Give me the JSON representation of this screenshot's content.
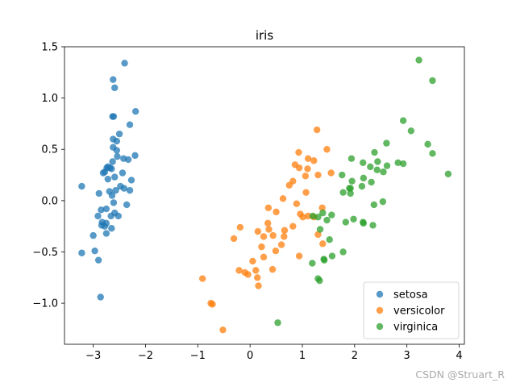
{
  "chart_data": {
    "type": "scatter",
    "title": "iris",
    "xlabel": "",
    "ylabel": "",
    "xlim": [
      -3.55,
      4.1
    ],
    "ylim": [
      -1.4,
      1.5
    ],
    "x_ticks": [
      -3,
      -2,
      -1,
      0,
      1,
      2,
      3,
      4
    ],
    "x_tick_labels": [
      "−3",
      "−2",
      "−1",
      "0",
      "1",
      "2",
      "3",
      "4"
    ],
    "y_ticks": [
      -1.0,
      -0.5,
      0.0,
      0.5,
      1.0,
      1.5
    ],
    "y_tick_labels": [
      "−1.0",
      "−0.5",
      "0.0",
      "0.5",
      "1.0",
      "1.5"
    ],
    "grid": false,
    "legend": "lower-right",
    "series": [
      {
        "name": "setosa",
        "color": "#1f77b4",
        "points": [
          [
            -2.4,
            1.34
          ],
          [
            -2.62,
            1.18
          ],
          [
            -2.59,
            1.1
          ],
          [
            -2.61,
            0.82
          ],
          [
            -2.63,
            0.82
          ],
          [
            -2.19,
            0.87
          ],
          [
            -2.3,
            0.74
          ],
          [
            -2.5,
            0.65
          ],
          [
            -2.62,
            0.6
          ],
          [
            -2.55,
            0.58
          ],
          [
            -2.62,
            0.52
          ],
          [
            -2.55,
            0.49
          ],
          [
            -2.2,
            0.44
          ],
          [
            -2.54,
            0.43
          ],
          [
            -2.42,
            0.41
          ],
          [
            -2.33,
            0.4
          ],
          [
            -2.63,
            0.38
          ],
          [
            -2.72,
            0.33
          ],
          [
            -2.74,
            0.32
          ],
          [
            -2.68,
            0.32
          ],
          [
            -2.65,
            0.31
          ],
          [
            -2.78,
            0.28
          ],
          [
            -2.81,
            0.27
          ],
          [
            -2.44,
            0.27
          ],
          [
            -2.27,
            0.2
          ],
          [
            -2.59,
            0.23
          ],
          [
            -2.72,
            0.21
          ],
          [
            -3.22,
            0.14
          ],
          [
            -2.48,
            0.14
          ],
          [
            -2.41,
            0.12
          ],
          [
            -2.57,
            0.1
          ],
          [
            -2.3,
            0.1
          ],
          [
            -2.69,
            0.09
          ],
          [
            -2.89,
            0.07
          ],
          [
            -2.64,
            0.05
          ],
          [
            -2.36,
            -0.04
          ],
          [
            -2.61,
            -0.02
          ],
          [
            -2.75,
            -0.08
          ],
          [
            -2.85,
            -0.09
          ],
          [
            -2.59,
            -0.12
          ],
          [
            -2.66,
            -0.15
          ],
          [
            -2.52,
            -0.15
          ],
          [
            -2.91,
            -0.15
          ],
          [
            -2.83,
            -0.21
          ],
          [
            -2.75,
            -0.22
          ],
          [
            -2.84,
            -0.24
          ],
          [
            -2.65,
            -0.27
          ],
          [
            -2.78,
            -0.25
          ],
          [
            -2.75,
            -0.32
          ],
          [
            -3.0,
            -0.34
          ],
          [
            -2.97,
            -0.49
          ],
          [
            -3.22,
            -0.51
          ],
          [
            -2.9,
            -0.58
          ],
          [
            -2.86,
            -0.94
          ]
        ]
      },
      {
        "name": "versicolor",
        "color": "#ff7f0e",
        "points": [
          [
            1.28,
            0.69
          ],
          [
            1.47,
            0.5
          ],
          [
            0.93,
            0.47
          ],
          [
            1.11,
            0.41
          ],
          [
            1.22,
            0.39
          ],
          [
            0.94,
            0.32
          ],
          [
            0.86,
            0.35
          ],
          [
            1.1,
            0.31
          ],
          [
            1.55,
            0.27
          ],
          [
            1.06,
            0.24
          ],
          [
            1.3,
            0.25
          ],
          [
            0.82,
            0.19
          ],
          [
            0.75,
            0.15
          ],
          [
            0.63,
            0.02
          ],
          [
            1.07,
            0.08
          ],
          [
            0.89,
            -0.03
          ],
          [
            0.35,
            -0.07
          ],
          [
            1.38,
            -0.07
          ],
          [
            0.96,
            -0.13
          ],
          [
            0.5,
            -0.11
          ],
          [
            1.11,
            -0.15
          ],
          [
            1.01,
            -0.16
          ],
          [
            1.22,
            -0.16
          ],
          [
            0.34,
            -0.22
          ],
          [
            0.82,
            -0.25
          ],
          [
            -0.19,
            -0.26
          ],
          [
            0.36,
            -0.28
          ],
          [
            0.15,
            -0.3
          ],
          [
            0.66,
            -0.29
          ],
          [
            0.26,
            -0.35
          ],
          [
            0.44,
            -0.34
          ],
          [
            0.65,
            -0.35
          ],
          [
            -0.31,
            -0.37
          ],
          [
            1.3,
            -0.33
          ],
          [
            1.39,
            -0.42
          ],
          [
            0.6,
            -0.43
          ],
          [
            0.22,
            -0.45
          ],
          [
            0.49,
            -0.49
          ],
          [
            0.26,
            -0.55
          ],
          [
            0.94,
            -0.54
          ],
          [
            0.05,
            -0.59
          ],
          [
            0.43,
            -0.67
          ],
          [
            -0.21,
            -0.68
          ],
          [
            0.11,
            -0.68
          ],
          [
            -0.1,
            -0.7
          ],
          [
            -0.04,
            -0.72
          ],
          [
            0.14,
            -0.75
          ],
          [
            -0.91,
            -0.76
          ],
          [
            0.16,
            -0.83
          ],
          [
            -0.75,
            -1.0
          ],
          [
            -0.72,
            -1.01
          ],
          [
            -0.52,
            -1.26
          ]
        ]
      },
      {
        "name": "virginica",
        "color": "#2ca02c",
        "points": [
          [
            3.23,
            1.37
          ],
          [
            3.49,
            1.17
          ],
          [
            2.93,
            0.78
          ],
          [
            3.08,
            0.68
          ],
          [
            2.61,
            0.56
          ],
          [
            3.4,
            0.55
          ],
          [
            2.38,
            0.47
          ],
          [
            3.49,
            0.46
          ],
          [
            1.94,
            0.41
          ],
          [
            2.16,
            0.37
          ],
          [
            2.44,
            0.38
          ],
          [
            2.3,
            0.33
          ],
          [
            2.62,
            0.34
          ],
          [
            2.83,
            0.37
          ],
          [
            2.43,
            0.3
          ],
          [
            2.93,
            0.36
          ],
          [
            1.76,
            0.25
          ],
          [
            3.79,
            0.26
          ],
          [
            2.17,
            0.22
          ],
          [
            2.55,
            0.28
          ],
          [
            2.32,
            0.18
          ],
          [
            1.95,
            0.19
          ],
          [
            1.9,
            0.12
          ],
          [
            1.92,
            0.12
          ],
          [
            2.14,
            0.14
          ],
          [
            1.78,
            0.08
          ],
          [
            1.92,
            0.07
          ],
          [
            2.54,
            -0.01
          ],
          [
            2.37,
            -0.04
          ],
          [
            1.39,
            -0.12
          ],
          [
            1.56,
            -0.14
          ],
          [
            1.2,
            -0.15
          ],
          [
            1.3,
            -0.16
          ],
          [
            1.47,
            -0.19
          ],
          [
            1.98,
            -0.18
          ],
          [
            2.16,
            -0.21
          ],
          [
            1.83,
            -0.21
          ],
          [
            2.17,
            -0.22
          ],
          [
            2.35,
            -0.24
          ],
          [
            1.34,
            -0.28
          ],
          [
            1.52,
            -0.38
          ],
          [
            1.78,
            -0.5
          ],
          [
            1.57,
            -0.54
          ],
          [
            1.41,
            -0.57
          ],
          [
            1.42,
            -0.58
          ],
          [
            1.19,
            -0.61
          ],
          [
            1.3,
            -0.76
          ],
          [
            1.33,
            -0.78
          ],
          [
            0.53,
            -1.19
          ]
        ]
      }
    ]
  },
  "watermark": "CSDN @Struart_R"
}
